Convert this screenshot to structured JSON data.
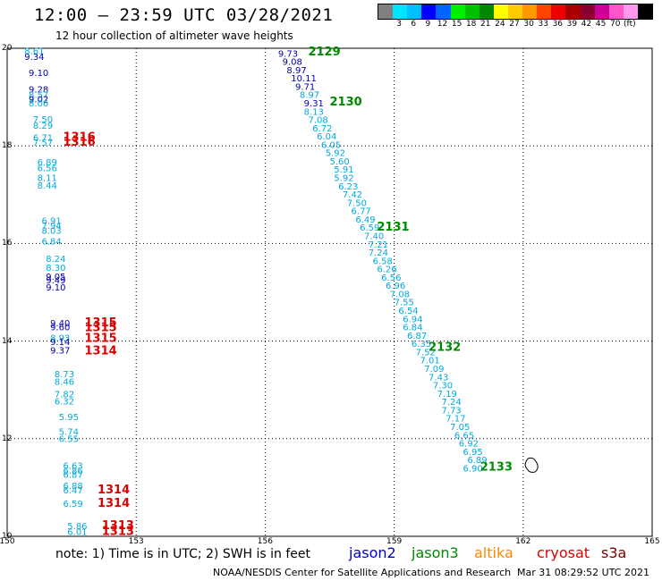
{
  "header": {
    "title": "12:00 – 23:59 UTC 03/28/2021",
    "subtitle": "12 hour collection of altimeter wave heights"
  },
  "colorbar": {
    "colors": [
      "#808080",
      "#00e5ff",
      "#00bfff",
      "#0000ff",
      "#0066ff",
      "#00ee00",
      "#00c000",
      "#008800",
      "#ffff00",
      "#ffcc00",
      "#ff9900",
      "#ff4400",
      "#ee0000",
      "#aa0000",
      "#880033",
      "#cc0099",
      "#ff55cc",
      "#ff99ee",
      "#000000"
    ],
    "labels": [
      "3",
      "6",
      "9",
      "12",
      "15",
      "18",
      "21",
      "24",
      "27",
      "30",
      "33",
      "36",
      "39",
      "42",
      "45",
      "70",
      "(ft)"
    ]
  },
  "axes": {
    "x_ticks": [
      "150",
      "153",
      "156",
      "159",
      "162",
      "165"
    ],
    "y_ticks": [
      "20",
      "18",
      "16",
      "14",
      "12",
      "10"
    ],
    "xlim": [
      150,
      165
    ],
    "ylim": [
      10,
      20
    ]
  },
  "colors": {
    "jason2": "#0000cc",
    "jason3": "#008800",
    "altika": "#ff8800",
    "cryosat": "#dd0000",
    "s3a": "#770000",
    "cyan": "#00aadd",
    "navy": "#0000aa"
  },
  "legend": {
    "note": "note:  1) Time is in UTC;  2) SWH is in feet",
    "jason2": "jason2",
    "jason3": "jason3",
    "altika": "altika",
    "cryosat": "cryosat",
    "s3a": "s3a"
  },
  "footer": {
    "credit": "NOAA/NESDIS Center for Satellite Applications and Research",
    "timestamp": "Mar 31 08:29:52 UTC 2021"
  },
  "chart_data": {
    "type": "scatter",
    "left_track": [
      {
        "lon": 150.4,
        "lat": 19.88,
        "v": "8.61",
        "c": "cyan"
      },
      {
        "lon": 150.4,
        "lat": 19.76,
        "v": "9.34",
        "c": "navy"
      },
      {
        "lon": 150.5,
        "lat": 19.43,
        "v": "9.10",
        "c": "navy"
      },
      {
        "lon": 150.5,
        "lat": 19.09,
        "v": "9.28",
        "c": "navy"
      },
      {
        "lon": 150.5,
        "lat": 18.98,
        "v": "8.57",
        "c": "cyan"
      },
      {
        "lon": 150.5,
        "lat": 18.89,
        "v": "9.02",
        "c": "navy"
      },
      {
        "lon": 150.5,
        "lat": 18.81,
        "v": "8.06",
        "c": "cyan"
      },
      {
        "lon": 150.6,
        "lat": 18.48,
        "v": "7.50",
        "c": "cyan"
      },
      {
        "lon": 150.6,
        "lat": 18.35,
        "v": "8.29",
        "c": "cyan"
      },
      {
        "lon": 150.6,
        "lat": 18.1,
        "v": "6.71",
        "c": "cyan"
      },
      {
        "lon": 150.6,
        "lat": 18.0,
        "v": "7.57",
        "c": "cyan"
      },
      {
        "lon": 150.7,
        "lat": 17.6,
        "v": "6.89",
        "c": "cyan"
      },
      {
        "lon": 150.7,
        "lat": 17.48,
        "v": "6.56",
        "c": "cyan"
      },
      {
        "lon": 150.7,
        "lat": 17.28,
        "v": "8.11",
        "c": "cyan"
      },
      {
        "lon": 150.7,
        "lat": 17.12,
        "v": "8.44",
        "c": "cyan"
      },
      {
        "lon": 150.8,
        "lat": 16.4,
        "v": "6.91",
        "c": "cyan"
      },
      {
        "lon": 150.8,
        "lat": 16.3,
        "v": "7.94",
        "c": "cyan"
      },
      {
        "lon": 150.8,
        "lat": 16.2,
        "v": "8.03",
        "c": "cyan"
      },
      {
        "lon": 150.8,
        "lat": 15.98,
        "v": "6.84",
        "c": "cyan"
      },
      {
        "lon": 150.9,
        "lat": 15.62,
        "v": "8.24",
        "c": "cyan"
      },
      {
        "lon": 150.9,
        "lat": 15.44,
        "v": "8.30",
        "c": "cyan"
      },
      {
        "lon": 150.9,
        "lat": 15.26,
        "v": "9.05",
        "c": "navy"
      },
      {
        "lon": 150.9,
        "lat": 15.18,
        "v": "9.49",
        "c": "navy"
      },
      {
        "lon": 150.9,
        "lat": 15.04,
        "v": "9.10",
        "c": "navy"
      },
      {
        "lon": 151.0,
        "lat": 14.3,
        "v": "9.40",
        "c": "navy"
      },
      {
        "lon": 151.0,
        "lat": 14.22,
        "v": "9.60",
        "c": "navy"
      },
      {
        "lon": 151.0,
        "lat": 14.0,
        "v": "8.93",
        "c": "cyan"
      },
      {
        "lon": 151.0,
        "lat": 13.92,
        "v": "9.14",
        "c": "navy"
      },
      {
        "lon": 151.0,
        "lat": 13.75,
        "v": "9.37",
        "c": "navy"
      },
      {
        "lon": 151.1,
        "lat": 13.26,
        "v": "8.73",
        "c": "cyan"
      },
      {
        "lon": 151.1,
        "lat": 13.1,
        "v": "8.46",
        "c": "cyan"
      },
      {
        "lon": 151.1,
        "lat": 12.85,
        "v": "7.82",
        "c": "cyan"
      },
      {
        "lon": 151.1,
        "lat": 12.7,
        "v": "6.32",
        "c": "cyan"
      },
      {
        "lon": 151.2,
        "lat": 12.38,
        "v": "5.95",
        "c": "cyan"
      },
      {
        "lon": 151.2,
        "lat": 12.08,
        "v": "5.74",
        "c": "cyan"
      },
      {
        "lon": 151.2,
        "lat": 11.93,
        "v": "6.55",
        "c": "cyan"
      },
      {
        "lon": 151.3,
        "lat": 11.38,
        "v": "6.63",
        "c": "cyan"
      },
      {
        "lon": 151.3,
        "lat": 11.28,
        "v": "6.86",
        "c": "cyan"
      },
      {
        "lon": 151.3,
        "lat": 11.2,
        "v": "6.87",
        "c": "cyan"
      },
      {
        "lon": 151.3,
        "lat": 10.97,
        "v": "6.88",
        "c": "cyan"
      },
      {
        "lon": 151.3,
        "lat": 10.88,
        "v": "6.47",
        "c": "cyan"
      },
      {
        "lon": 151.3,
        "lat": 10.6,
        "v": "6.59",
        "c": "cyan"
      },
      {
        "lon": 151.4,
        "lat": 10.15,
        "v": "5.86",
        "c": "cyan"
      },
      {
        "lon": 151.4,
        "lat": 10.03,
        "v": "6.01",
        "c": "cyan"
      }
    ],
    "right_track": [
      {
        "lon": 156.3,
        "lat": 19.83,
        "v": "9.73",
        "c": "navy"
      },
      {
        "lon": 156.4,
        "lat": 19.66,
        "v": "9.08",
        "c": "navy"
      },
      {
        "lon": 156.5,
        "lat": 19.49,
        "v": "8.97",
        "c": "navy"
      },
      {
        "lon": 156.6,
        "lat": 19.32,
        "v": "10.11",
        "c": "navy"
      },
      {
        "lon": 156.7,
        "lat": 19.15,
        "v": "9.71",
        "c": "navy"
      },
      {
        "lon": 156.8,
        "lat": 18.98,
        "v": "8.97",
        "c": "cyan"
      },
      {
        "lon": 156.9,
        "lat": 18.81,
        "v": "9.31",
        "c": "navy"
      },
      {
        "lon": 156.9,
        "lat": 18.64,
        "v": "8.13",
        "c": "cyan"
      },
      {
        "lon": 157.0,
        "lat": 18.47,
        "v": "7.08",
        "c": "cyan"
      },
      {
        "lon": 157.1,
        "lat": 18.3,
        "v": "6.72",
        "c": "cyan"
      },
      {
        "lon": 157.2,
        "lat": 18.13,
        "v": "6.04",
        "c": "cyan"
      },
      {
        "lon": 157.3,
        "lat": 17.96,
        "v": "6.05",
        "c": "cyan"
      },
      {
        "lon": 157.4,
        "lat": 17.79,
        "v": "5.92",
        "c": "cyan"
      },
      {
        "lon": 157.5,
        "lat": 17.62,
        "v": "5.60",
        "c": "cyan"
      },
      {
        "lon": 157.6,
        "lat": 17.45,
        "v": "5.91",
        "c": "cyan"
      },
      {
        "lon": 157.6,
        "lat": 17.28,
        "v": "5.92",
        "c": "cyan"
      },
      {
        "lon": 157.7,
        "lat": 17.11,
        "v": "6.23",
        "c": "cyan"
      },
      {
        "lon": 157.8,
        "lat": 16.94,
        "v": "7.42",
        "c": "cyan"
      },
      {
        "lon": 157.9,
        "lat": 16.77,
        "v": "7.50",
        "c": "cyan"
      },
      {
        "lon": 158.0,
        "lat": 16.6,
        "v": "6.77",
        "c": "cyan"
      },
      {
        "lon": 158.1,
        "lat": 16.43,
        "v": "6.49",
        "c": "cyan"
      },
      {
        "lon": 158.2,
        "lat": 16.26,
        "v": "6.59",
        "c": "cyan"
      },
      {
        "lon": 158.3,
        "lat": 16.09,
        "v": "7.40",
        "c": "cyan"
      },
      {
        "lon": 158.4,
        "lat": 15.92,
        "v": "7.21",
        "c": "cyan"
      },
      {
        "lon": 158.4,
        "lat": 15.75,
        "v": "7.24",
        "c": "cyan"
      },
      {
        "lon": 158.5,
        "lat": 15.58,
        "v": "6.58",
        "c": "cyan"
      },
      {
        "lon": 158.6,
        "lat": 15.41,
        "v": "6.26",
        "c": "cyan"
      },
      {
        "lon": 158.7,
        "lat": 15.24,
        "v": "6.56",
        "c": "cyan"
      },
      {
        "lon": 158.8,
        "lat": 15.07,
        "v": "6.96",
        "c": "cyan"
      },
      {
        "lon": 158.9,
        "lat": 14.9,
        "v": "7.08",
        "c": "cyan"
      },
      {
        "lon": 159.0,
        "lat": 14.73,
        "v": "7.55",
        "c": "cyan"
      },
      {
        "lon": 159.1,
        "lat": 14.56,
        "v": "6.54",
        "c": "cyan"
      },
      {
        "lon": 159.2,
        "lat": 14.39,
        "v": "6.94",
        "c": "cyan"
      },
      {
        "lon": 159.2,
        "lat": 14.22,
        "v": "6.84",
        "c": "cyan"
      },
      {
        "lon": 159.3,
        "lat": 14.05,
        "v": "6.87",
        "c": "cyan"
      },
      {
        "lon": 159.4,
        "lat": 13.88,
        "v": "6.35",
        "c": "cyan"
      },
      {
        "lon": 159.5,
        "lat": 13.71,
        "v": "7.52",
        "c": "cyan"
      },
      {
        "lon": 159.6,
        "lat": 13.54,
        "v": "7.01",
        "c": "cyan"
      },
      {
        "lon": 159.7,
        "lat": 13.37,
        "v": "7.09",
        "c": "cyan"
      },
      {
        "lon": 159.8,
        "lat": 13.2,
        "v": "7.43",
        "c": "cyan"
      },
      {
        "lon": 159.9,
        "lat": 13.03,
        "v": "7.30",
        "c": "cyan"
      },
      {
        "lon": 160.0,
        "lat": 12.86,
        "v": "7.19",
        "c": "cyan"
      },
      {
        "lon": 160.1,
        "lat": 12.69,
        "v": "7.24",
        "c": "cyan"
      },
      {
        "lon": 160.1,
        "lat": 12.52,
        "v": "7.73",
        "c": "cyan"
      },
      {
        "lon": 160.2,
        "lat": 12.35,
        "v": "7.17",
        "c": "cyan"
      },
      {
        "lon": 160.3,
        "lat": 12.18,
        "v": "7.05",
        "c": "cyan"
      },
      {
        "lon": 160.4,
        "lat": 12.01,
        "v": "6.65",
        "c": "cyan"
      },
      {
        "lon": 160.5,
        "lat": 11.84,
        "v": "6.92",
        "c": "cyan"
      },
      {
        "lon": 160.6,
        "lat": 11.67,
        "v": "6.95",
        "c": "cyan"
      },
      {
        "lon": 160.7,
        "lat": 11.5,
        "v": "6.89",
        "c": "cyan"
      },
      {
        "lon": 160.6,
        "lat": 11.33,
        "v": "6.90",
        "c": "cyan"
      }
    ],
    "time_labels": [
      {
        "lon": 157.0,
        "lat": 19.85,
        "text": "2129",
        "c": "jason3"
      },
      {
        "lon": 157.5,
        "lat": 18.83,
        "text": "2130",
        "c": "jason3"
      },
      {
        "lon": 158.6,
        "lat": 16.26,
        "text": "2131",
        "c": "jason3"
      },
      {
        "lon": 159.8,
        "lat": 13.8,
        "text": "2132",
        "c": "jason3"
      },
      {
        "lon": 161.0,
        "lat": 11.35,
        "text": "2133",
        "c": "jason3"
      },
      {
        "lon": 151.3,
        "lat": 18.1,
        "text": "1316",
        "c": "cryosat"
      },
      {
        "lon": 151.3,
        "lat": 18.0,
        "text": "1316",
        "c": "cryosat"
      },
      {
        "lon": 151.8,
        "lat": 14.3,
        "text": "1315",
        "c": "cryosat"
      },
      {
        "lon": 151.8,
        "lat": 14.2,
        "text": "1315",
        "c": "cryosat"
      },
      {
        "lon": 151.8,
        "lat": 13.98,
        "text": "1315",
        "c": "cryosat"
      },
      {
        "lon": 151.8,
        "lat": 13.73,
        "text": "1314",
        "c": "cryosat"
      },
      {
        "lon": 152.1,
        "lat": 10.88,
        "text": "1314",
        "c": "cryosat"
      },
      {
        "lon": 152.1,
        "lat": 10.6,
        "text": "1314",
        "c": "cryosat"
      },
      {
        "lon": 152.2,
        "lat": 10.15,
        "text": "1313",
        "c": "cryosat"
      },
      {
        "lon": 152.2,
        "lat": 10.03,
        "text": "1313",
        "c": "cryosat"
      }
    ]
  }
}
